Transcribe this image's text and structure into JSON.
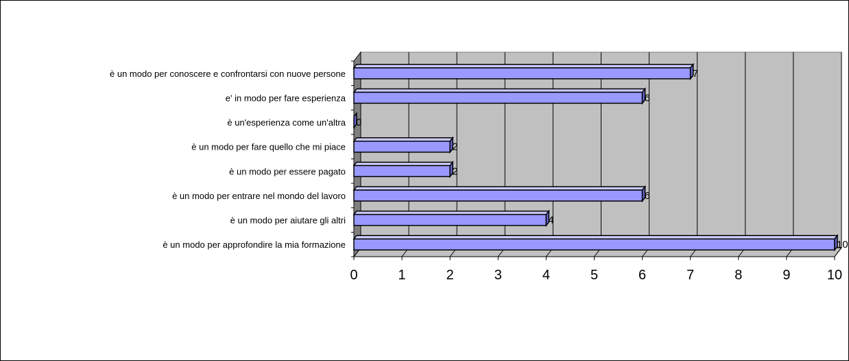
{
  "chart_data": {
    "type": "bar",
    "orientation": "horizontal",
    "style": "3d",
    "title": "",
    "xlabel": "",
    "ylabel": "",
    "categories": [
      "è un modo per approfondire la mia formazione",
      "è un modo per aiutare gli altri",
      "è un modo per entrare nel mondo del lavoro",
      "è un modo per essere pagato",
      "è un modo per fare quello che mi piace",
      "è un'esperienza come un'altra",
      "e' in modo per fare esperienza",
      "è un modo per conoscere e confrontarsi con nuove persone"
    ],
    "values": [
      10,
      4,
      6,
      2,
      2,
      0,
      6,
      7
    ],
    "value_labels": [
      "10",
      "4",
      "6",
      "2",
      "2",
      "0",
      "6",
      "7"
    ],
    "xlim": [
      0,
      10
    ],
    "x_ticks": [
      "0",
      "1",
      "2",
      "3",
      "4",
      "5",
      "6",
      "7",
      "8",
      "9",
      "10"
    ],
    "grid": true,
    "legend": "none",
    "colors": {
      "bar": "#9999FF",
      "bar_top": "#CCCCFF",
      "bar_side": "#6666CC",
      "plot_wall": "#C0C0C0",
      "side_wall": "#808080",
      "floor": "#C0C0C0"
    }
  }
}
